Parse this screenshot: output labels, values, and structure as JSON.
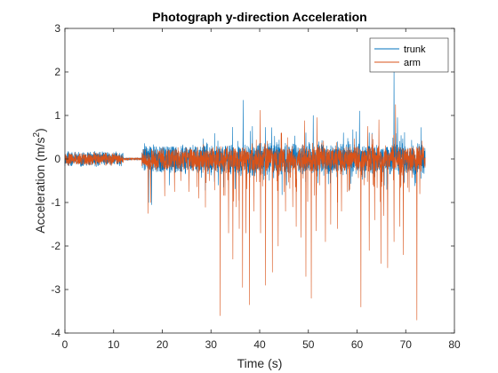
{
  "chart_data": {
    "type": "line",
    "title": "Photograph y-direction Acceleration",
    "xlabel": "Time (s)",
    "ylabel_base": "Acceleration (m/s",
    "ylabel_sup": "2",
    "ylabel_close": ")",
    "xlim": [
      0,
      80
    ],
    "ylim": [
      -4,
      3
    ],
    "xticks": [
      0,
      10,
      20,
      30,
      40,
      50,
      60,
      70,
      80
    ],
    "yticks": [
      -4,
      -3,
      -2,
      -1,
      0,
      1,
      2,
      3
    ],
    "grid": false,
    "legend_position": "top-right",
    "series": [
      {
        "name": "trunk",
        "color": "#0072BD",
        "x_range": [
          0,
          74
        ],
        "spikes": [
          [
            17.2,
            -1.0
          ],
          [
            17.8,
            -1.05
          ],
          [
            21.5,
            -0.6
          ],
          [
            31.5,
            -0.6
          ],
          [
            36.6,
            1.35
          ],
          [
            38.5,
            0.75
          ],
          [
            42.5,
            0.72
          ],
          [
            45.5,
            -0.6
          ],
          [
            49.5,
            0.6
          ],
          [
            51,
            1.0
          ],
          [
            52,
            -0.55
          ],
          [
            57.2,
            0.6
          ],
          [
            60.5,
            1.1
          ],
          [
            62.5,
            0.6
          ],
          [
            65.5,
            -0.6
          ],
          [
            67.6,
            2.1
          ],
          [
            68.3,
            0.95
          ],
          [
            72,
            -0.55
          ]
        ]
      },
      {
        "name": "arm",
        "color": "#D95319",
        "x_range": [
          0,
          74
        ],
        "spikes": [
          [
            17.1,
            -1.25
          ],
          [
            17.6,
            -1.0
          ],
          [
            20.5,
            -0.85
          ],
          [
            22.5,
            -0.75
          ],
          [
            23.8,
            -0.5
          ],
          [
            25.5,
            -0.75
          ],
          [
            27.5,
            -0.9
          ],
          [
            31.9,
            -3.6
          ],
          [
            33.6,
            -1.7
          ],
          [
            34.5,
            -2.3
          ],
          [
            35.2,
            -1.1
          ],
          [
            35.8,
            -1.6
          ],
          [
            36.5,
            -2.95
          ],
          [
            37.2,
            -1.7
          ],
          [
            37.9,
            -3.35
          ],
          [
            38.8,
            -1.2
          ],
          [
            40.2,
            -1.7
          ],
          [
            41.2,
            -2.9
          ],
          [
            42.6,
            -2.6
          ],
          [
            43.8,
            -2.0
          ],
          [
            44.5,
            -1.5
          ],
          [
            45.3,
            -1.2
          ],
          [
            46.8,
            -1.1
          ],
          [
            47.5,
            -1.55
          ],
          [
            48.5,
            -1.8
          ],
          [
            49.5,
            -2.7
          ],
          [
            50.6,
            -3.2
          ],
          [
            51.6,
            -1.65
          ],
          [
            53.5,
            -1.9
          ],
          [
            54.6,
            -1.5
          ],
          [
            56,
            -1.6
          ],
          [
            56.8,
            -1.2
          ],
          [
            58.5,
            -0.7
          ],
          [
            60.8,
            -3.4
          ],
          [
            62.5,
            -2.1
          ],
          [
            63.6,
            -1.4
          ],
          [
            64.9,
            -2.4
          ],
          [
            65.5,
            -1.3
          ],
          [
            66.3,
            -2.5
          ],
          [
            67.6,
            -1.9
          ],
          [
            68.8,
            -1.55
          ],
          [
            69.5,
            -2.2
          ],
          [
            72.3,
            -3.7
          ],
          [
            72.9,
            -0.8
          ],
          [
            40.1,
            1.12
          ],
          [
            44.5,
            0.6
          ],
          [
            49.2,
            0.88
          ],
          [
            51.8,
            0.95
          ],
          [
            62.2,
            0.75
          ],
          [
            64.5,
            0.9
          ],
          [
            67.9,
            1.25
          ]
        ]
      }
    ]
  }
}
